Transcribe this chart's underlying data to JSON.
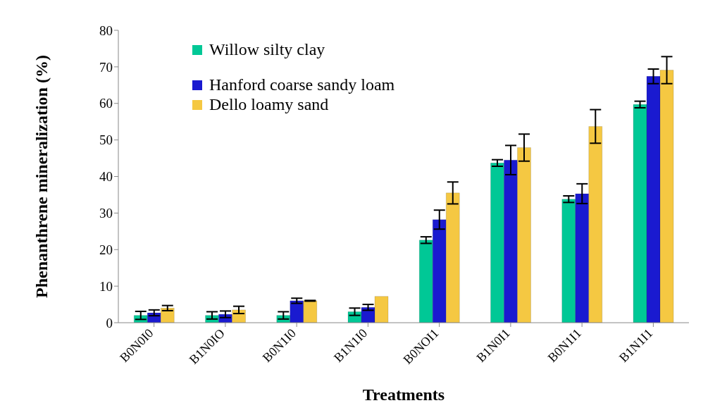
{
  "chart_data": {
    "type": "bar",
    "xlabel": "Treatments",
    "ylabel": "Phenanthrene mineralization (%)",
    "categories": [
      "B0N0I0",
      "B1N0IO",
      "B0N1I0",
      "B1N1I0",
      "B0NOI1",
      "B1N0I1",
      "B0N1I1",
      "B1N1I1"
    ],
    "series": [
      {
        "name": "Willow silty clay",
        "color": "#00c896",
        "values": [
          2,
          2,
          2,
          3,
          22.6,
          43.7,
          33.8,
          59.7
        ],
        "errors": [
          1.1,
          1,
          1,
          1,
          0.9,
          0.9,
          0.9,
          0.9
        ]
      },
      {
        "name": "Hanford coarse sandy loam",
        "color": "#1a1ad0",
        "values": [
          2.7,
          2.3,
          6,
          4.2,
          28.2,
          44.5,
          35.3,
          67.4
        ],
        "errors": [
          0.8,
          0.9,
          0.7,
          0.8,
          2.6,
          4,
          2.7,
          2
        ]
      },
      {
        "name": "Dello loamy sand",
        "color": "#f5c842",
        "values": [
          4,
          3.5,
          6,
          7.2,
          35.5,
          47.9,
          53.7,
          69.1
        ],
        "errors": [
          0.7,
          1,
          0.1,
          null,
          3,
          3.7,
          4.6,
          3.7
        ]
      }
    ],
    "ylim": [
      0,
      80
    ],
    "yticks": [
      0,
      10,
      20,
      30,
      40,
      50,
      60,
      70,
      80
    ],
    "grid": false,
    "legend": "top left"
  }
}
